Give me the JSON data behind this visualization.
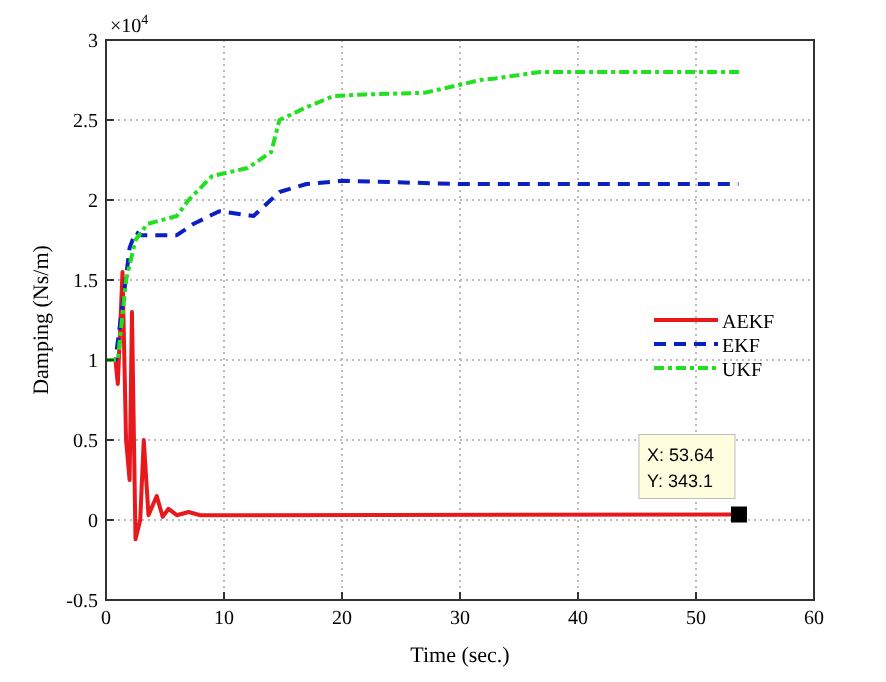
{
  "chart_data": {
    "type": "line",
    "xlabel": "Time (sec.)",
    "ylabel": "Damping (Ns/m)",
    "xlim": [
      0,
      60
    ],
    "xticks": [
      0,
      10,
      20,
      30,
      40,
      50,
      60
    ],
    "ylim": [
      -0.5,
      3
    ],
    "yticks": [
      -0.5,
      0,
      0.5,
      1,
      1.5,
      2,
      2.5,
      3
    ],
    "grid": true,
    "legend": "right",
    "annotations": [
      "×10$^{4}$",
      {
        "text": "X: 53.64\nY: 343.1",
        "x": 53.64,
        "y": 0.03431
      }
    ],
    "series": [
      {
        "name": "AEKF",
        "color": "#e8191c",
        "line_style": "solid",
        "x": [
          0,
          0.8,
          1,
          1.4,
          1.7,
          2,
          2.2,
          2.5,
          2.9,
          3.2,
          3.6,
          4.3,
          4.8,
          5.3,
          6,
          7,
          8,
          53.64
        ],
        "values": [
          1,
          1,
          0.85,
          1.55,
          0.5,
          0.25,
          1.3,
          -0.12,
          0,
          0.5,
          0.03,
          0.15,
          0.02,
          0.07,
          0.03,
          0.05,
          0.03,
          0.03431
        ]
      },
      {
        "name": "EKF",
        "color": "#0a1fc4",
        "line_style": "dashed",
        "x": [
          0,
          0.8,
          1.5,
          2,
          2.5,
          3,
          6,
          7.4,
          9.6,
          12.5,
          14.7,
          17,
          20,
          30,
          53.6
        ],
        "values": [
          1,
          1,
          1.4,
          1.7,
          1.8,
          1.78,
          1.78,
          1.85,
          1.93,
          1.9,
          2.05,
          2.1,
          2.12,
          2.1,
          2.1
        ]
      },
      {
        "name": "UKF",
        "color": "#22e01f",
        "line_style": "dashed",
        "x": [
          0,
          1,
          1.7,
          2.5,
          3.5,
          6,
          7,
          9,
          12,
          14,
          14.7,
          17,
          19.3,
          22,
          27,
          30,
          31.7,
          33,
          36.8,
          40,
          53.7
        ],
        "values": [
          1,
          1,
          1.5,
          1.75,
          1.85,
          1.9,
          2,
          2.15,
          2.2,
          2.3,
          2.5,
          2.58,
          2.65,
          2.66,
          2.67,
          2.72,
          2.75,
          2.76,
          2.8,
          2.8,
          2.8
        ]
      }
    ]
  }
}
